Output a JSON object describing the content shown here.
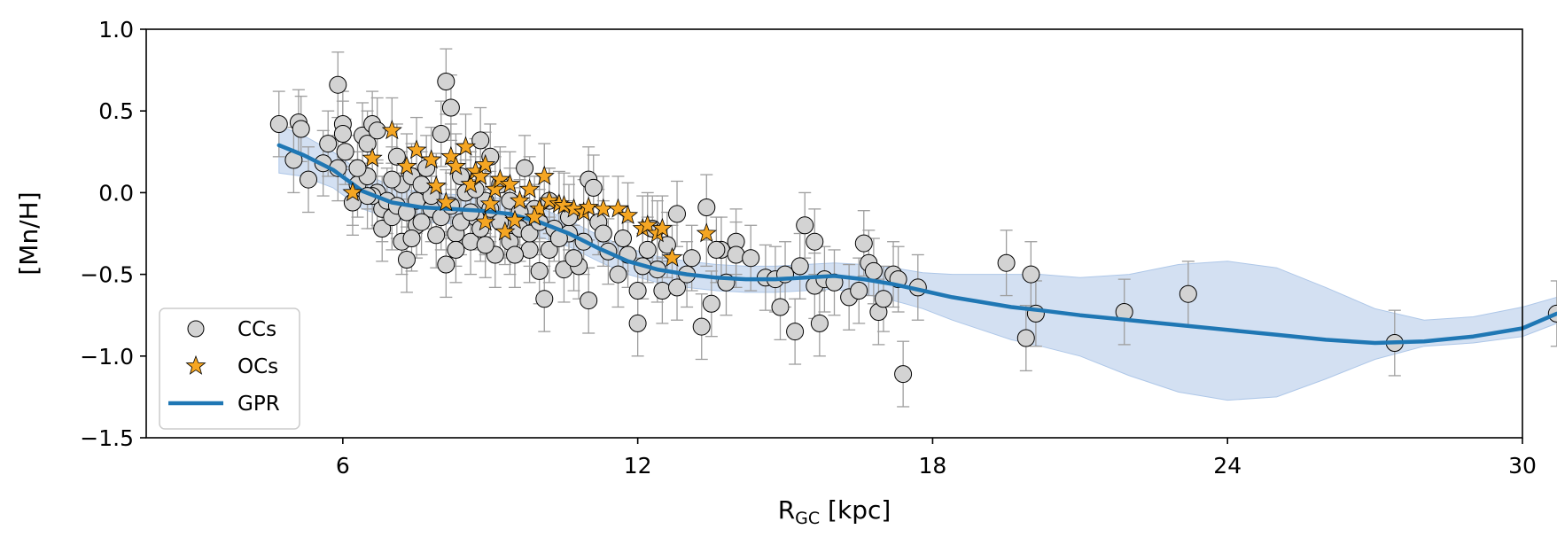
{
  "chart_data": {
    "type": "scatter",
    "xlabel_main": "R",
    "xlabel_sub": "GC",
    "xlabel_rest": " [kpc]",
    "ylabel": "[Mn/H]",
    "xlim": [
      2,
      30
    ],
    "ylim": [
      -1.5,
      1.0
    ],
    "x_ticks": [
      6,
      12,
      18,
      24,
      30
    ],
    "y_ticks": [
      1.0,
      0.5,
      0.0,
      -0.5,
      -1.0,
      -1.5
    ],
    "x_tick_labels": [
      "6",
      "12",
      "18",
      "24",
      "30"
    ],
    "y_tick_labels": [
      "1.0",
      "0.5",
      "0.0",
      "−0.5",
      "−1.0",
      "−1.5"
    ],
    "grid": false,
    "legend_position": "bottom-left",
    "legend": [
      "CCs",
      "OCs",
      "GPR"
    ],
    "colors": {
      "ccs_fill": "#d3d3d3",
      "ocs_fill": "#f5a623",
      "gpr_line": "#1f77b4",
      "gpr_band": "#aec7e8",
      "errorbar": "#9e9e9e"
    },
    "series": [
      {
        "name": "CCs",
        "marker": "circle",
        "points": [
          [
            4.7,
            0.42
          ],
          [
            5.1,
            0.43
          ],
          [
            5.15,
            0.39
          ],
          [
            5.0,
            0.2
          ],
          [
            5.3,
            0.08
          ],
          [
            5.6,
            0.18
          ],
          [
            5.7,
            0.3
          ],
          [
            5.9,
            0.66
          ],
          [
            6.0,
            0.42
          ],
          [
            6.0,
            0.36
          ],
          [
            6.05,
            0.25
          ],
          [
            5.9,
            0.15
          ],
          [
            6.2,
            -0.06
          ],
          [
            6.3,
            0.05
          ],
          [
            6.4,
            0.35
          ],
          [
            6.5,
            0.3
          ],
          [
            6.5,
            0.1
          ],
          [
            6.6,
            0.42
          ],
          [
            6.7,
            0.38
          ],
          [
            6.7,
            0.0
          ],
          [
            6.8,
            -0.1
          ],
          [
            6.8,
            -0.22
          ],
          [
            7.0,
            -0.15
          ],
          [
            7.1,
            0.22
          ],
          [
            7.2,
            0.05
          ],
          [
            7.2,
            -0.3
          ],
          [
            7.3,
            -0.41
          ],
          [
            7.4,
            0.1
          ],
          [
            7.5,
            -0.05
          ],
          [
            7.5,
            -0.2
          ],
          [
            7.7,
            0.15
          ],
          [
            7.8,
            -0.1
          ],
          [
            7.9,
            -0.26
          ],
          [
            8.0,
            0.36
          ],
          [
            8.1,
            -0.44
          ],
          [
            8.1,
            0.68
          ],
          [
            8.2,
            0.52
          ],
          [
            8.3,
            -0.25
          ],
          [
            8.4,
            0.1
          ],
          [
            8.5,
            0.0
          ],
          [
            8.6,
            -0.3
          ],
          [
            8.7,
            -0.15
          ],
          [
            8.8,
            0.32
          ],
          [
            8.9,
            -0.05
          ],
          [
            9.0,
            0.22
          ],
          [
            9.1,
            -0.38
          ],
          [
            9.2,
            0.05
          ],
          [
            9.3,
            -0.2
          ],
          [
            9.4,
            -0.3
          ],
          [
            9.6,
            -0.22
          ],
          [
            9.7,
            0.15
          ],
          [
            9.8,
            -0.35
          ],
          [
            9.9,
            -0.1
          ],
          [
            10.0,
            -0.48
          ],
          [
            10.1,
            -0.65
          ],
          [
            10.2,
            -0.35
          ],
          [
            10.3,
            -0.22
          ],
          [
            10.5,
            -0.47
          ],
          [
            10.6,
            -0.25
          ],
          [
            10.8,
            -0.45
          ],
          [
            10.9,
            -0.3
          ],
          [
            11.0,
            -0.66
          ],
          [
            11.0,
            0.08
          ],
          [
            11.1,
            0.03
          ],
          [
            11.2,
            -0.18
          ],
          [
            11.4,
            -0.36
          ],
          [
            11.6,
            -0.5
          ],
          [
            11.8,
            -0.38
          ],
          [
            12.0,
            -0.8
          ],
          [
            12.0,
            -0.6
          ],
          [
            12.2,
            -0.35
          ],
          [
            12.4,
            -0.47
          ],
          [
            12.5,
            -0.6
          ],
          [
            12.6,
            -0.32
          ],
          [
            12.8,
            -0.58
          ],
          [
            12.8,
            -0.13
          ],
          [
            13.0,
            -0.5
          ],
          [
            13.3,
            -0.82
          ],
          [
            13.4,
            -0.09
          ],
          [
            13.5,
            -0.68
          ],
          [
            13.7,
            -0.35
          ],
          [
            13.8,
            -0.55
          ],
          [
            14.0,
            -0.3
          ],
          [
            14.0,
            -0.38
          ],
          [
            14.6,
            -0.52
          ],
          [
            14.8,
            -0.53
          ],
          [
            14.9,
            -0.7
          ],
          [
            15.2,
            -0.85
          ],
          [
            15.3,
            -0.45
          ],
          [
            15.4,
            -0.2
          ],
          [
            15.6,
            -0.3
          ],
          [
            15.6,
            -0.57
          ],
          [
            15.7,
            -0.8
          ],
          [
            15.8,
            -0.53
          ],
          [
            16.3,
            -0.64
          ],
          [
            16.5,
            -0.6
          ],
          [
            16.6,
            -0.31
          ],
          [
            16.7,
            -0.43
          ],
          [
            16.9,
            -0.73
          ],
          [
            17.0,
            -0.65
          ],
          [
            17.2,
            -0.5
          ],
          [
            17.3,
            -0.53
          ],
          [
            17.4,
            -1.11
          ],
          [
            17.7,
            -0.58
          ],
          [
            19.5,
            -0.43
          ],
          [
            19.9,
            -0.89
          ],
          [
            20.0,
            -0.5
          ],
          [
            20.1,
            -0.74
          ],
          [
            21.9,
            -0.73
          ],
          [
            23.2,
            -0.62
          ],
          [
            27.4,
            -0.92
          ],
          [
            30.7,
            -0.74
          ],
          [
            6.6,
            -0.02
          ],
          [
            6.9,
            -0.05
          ],
          [
            7.1,
            -0.08
          ],
          [
            7.3,
            -0.12
          ],
          [
            7.6,
            -0.18
          ],
          [
            7.8,
            -0.02
          ],
          [
            8.0,
            -0.15
          ],
          [
            8.2,
            -0.08
          ],
          [
            8.4,
            -0.18
          ],
          [
            8.6,
            -0.12
          ],
          [
            8.8,
            -0.22
          ],
          [
            9.0,
            -0.1
          ],
          [
            9.2,
            -0.18
          ],
          [
            9.4,
            -0.05
          ],
          [
            9.6,
            -0.12
          ],
          [
            9.8,
            -0.25
          ],
          [
            10.0,
            -0.18
          ],
          [
            10.2,
            -0.05
          ],
          [
            10.4,
            -0.28
          ],
          [
            10.6,
            -0.15
          ],
          [
            6.3,
            0.15
          ],
          [
            6.5,
            -0.02
          ],
          [
            7.0,
            0.08
          ],
          [
            7.6,
            0.05
          ],
          [
            8.3,
            -0.35
          ],
          [
            8.9,
            -0.32
          ],
          [
            9.5,
            -0.38
          ],
          [
            10.7,
            -0.4
          ],
          [
            11.3,
            -0.25
          ],
          [
            11.7,
            -0.28
          ],
          [
            12.1,
            -0.45
          ],
          [
            12.3,
            -0.22
          ],
          [
            13.1,
            -0.4
          ],
          [
            13.6,
            -0.35
          ],
          [
            14.3,
            -0.4
          ],
          [
            15.0,
            -0.5
          ],
          [
            16.0,
            -0.55
          ],
          [
            16.8,
            -0.48
          ],
          [
            7.4,
            -0.28
          ],
          [
            8.7,
            0.02
          ]
        ]
      },
      {
        "name": "OCs",
        "marker": "star",
        "points": [
          [
            6.2,
            0.0
          ],
          [
            6.6,
            0.21
          ],
          [
            7.0,
            0.38
          ],
          [
            7.3,
            0.16
          ],
          [
            7.5,
            0.26
          ],
          [
            7.8,
            0.2
          ],
          [
            7.9,
            0.04
          ],
          [
            8.2,
            0.22
          ],
          [
            8.3,
            0.16
          ],
          [
            8.5,
            0.28
          ],
          [
            8.6,
            0.05
          ],
          [
            8.7,
            0.13
          ],
          [
            8.8,
            0.1
          ],
          [
            8.9,
            0.17
          ],
          [
            9.0,
            -0.07
          ],
          [
            9.1,
            0.02
          ],
          [
            9.2,
            0.08
          ],
          [
            9.3,
            -0.24
          ],
          [
            9.4,
            0.05
          ],
          [
            9.5,
            -0.17
          ],
          [
            9.6,
            -0.05
          ],
          [
            9.8,
            0.02
          ],
          [
            10.0,
            -0.1
          ],
          [
            10.1,
            0.1
          ],
          [
            10.2,
            -0.05
          ],
          [
            10.4,
            -0.07
          ],
          [
            10.5,
            -0.08
          ],
          [
            10.7,
            -0.1
          ],
          [
            10.9,
            -0.12
          ],
          [
            11.0,
            -0.09
          ],
          [
            11.3,
            -0.1
          ],
          [
            11.6,
            -0.1
          ],
          [
            11.8,
            -0.14
          ],
          [
            12.1,
            -0.22
          ],
          [
            12.2,
            -0.2
          ],
          [
            12.4,
            -0.25
          ],
          [
            12.5,
            -0.22
          ],
          [
            12.7,
            -0.4
          ],
          [
            13.4,
            -0.25
          ],
          [
            8.1,
            -0.06
          ],
          [
            8.9,
            -0.18
          ],
          [
            9.9,
            -0.15
          ]
        ]
      },
      {
        "name": "GPR",
        "marker": "line",
        "x": [
          4.7,
          5.2,
          5.8,
          6.4,
          7.0,
          7.6,
          8.2,
          8.8,
          9.4,
          10.0,
          10.6,
          11.2,
          11.8,
          12.4,
          13.0,
          13.6,
          14.2,
          14.8,
          15.4,
          16.0,
          16.6,
          17.2,
          17.8,
          18.4,
          19.0,
          19.6,
          20.2,
          21.0,
          22.0,
          23.0,
          24.0,
          25.0,
          26.0,
          27.0,
          28.0,
          29.0,
          30.0,
          30.7
        ],
        "y": [
          0.29,
          0.23,
          0.14,
          0.01,
          -0.06,
          -0.09,
          -0.1,
          -0.11,
          -0.13,
          -0.18,
          -0.25,
          -0.34,
          -0.42,
          -0.47,
          -0.5,
          -0.52,
          -0.53,
          -0.53,
          -0.52,
          -0.51,
          -0.53,
          -0.56,
          -0.6,
          -0.64,
          -0.67,
          -0.7,
          -0.72,
          -0.75,
          -0.78,
          -0.81,
          -0.84,
          -0.87,
          -0.9,
          -0.92,
          -0.91,
          -0.88,
          -0.83,
          -0.74
        ],
        "lower": [
          0.12,
          0.1,
          0.03,
          -0.1,
          -0.16,
          -0.18,
          -0.19,
          -0.2,
          -0.22,
          -0.27,
          -0.33,
          -0.42,
          -0.5,
          -0.55,
          -0.58,
          -0.6,
          -0.61,
          -0.61,
          -0.6,
          -0.59,
          -0.62,
          -0.66,
          -0.71,
          -0.78,
          -0.84,
          -0.9,
          -0.94,
          -1.0,
          -1.12,
          -1.22,
          -1.27,
          -1.25,
          -1.14,
          -1.02,
          -0.94,
          -0.92,
          -0.88,
          -0.8
        ],
        "upper": [
          0.41,
          0.35,
          0.25,
          0.12,
          0.04,
          0.0,
          -0.01,
          -0.02,
          -0.04,
          -0.09,
          -0.17,
          -0.26,
          -0.34,
          -0.39,
          -0.42,
          -0.44,
          -0.45,
          -0.45,
          -0.44,
          -0.43,
          -0.44,
          -0.46,
          -0.49,
          -0.5,
          -0.5,
          -0.5,
          -0.5,
          -0.52,
          -0.5,
          -0.44,
          -0.42,
          -0.46,
          -0.58,
          -0.71,
          -0.78,
          -0.76,
          -0.7,
          -0.64
        ]
      }
    ]
  }
}
